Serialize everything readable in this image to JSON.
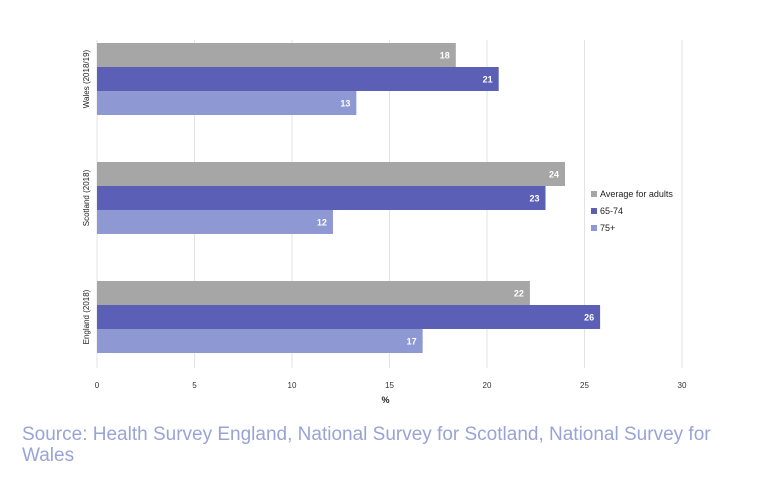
{
  "chart_data": {
    "type": "bar",
    "orientation": "horizontal",
    "categories": [
      "Wales (2018/19)",
      "Scotland (2018)",
      "England (2018)"
    ],
    "series": [
      {
        "name": "Average for adults",
        "color": "#a6a6a6",
        "values": [
          18,
          24,
          22
        ],
        "labels": [
          "18",
          "24",
          "22"
        ],
        "bar_values": [
          18.4,
          24.0,
          22.2
        ]
      },
      {
        "name": "65-74",
        "color": "#5b5fb6",
        "values": [
          21,
          23,
          26
        ],
        "labels": [
          "21",
          "23",
          "26"
        ],
        "bar_values": [
          20.6,
          23.0,
          25.8
        ]
      },
      {
        "name": "75+",
        "color": "#8e98d3",
        "values": [
          13,
          12,
          17
        ],
        "labels": [
          "13",
          "12",
          "17"
        ],
        "bar_values": [
          13.3,
          12.1,
          16.7
        ]
      }
    ],
    "xlabel": "%",
    "xlim": [
      0,
      30
    ],
    "xticks": [
      0,
      5,
      10,
      15,
      20,
      25,
      30
    ],
    "grid": true,
    "legend_position": "right"
  },
  "source": "Source: Health Survey England, National Survey for Scotland, National Survey for Wales"
}
